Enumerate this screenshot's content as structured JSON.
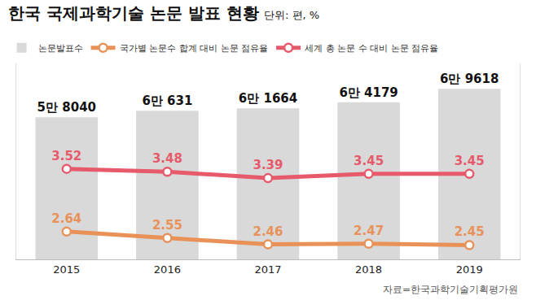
{
  "chart_data": {
    "type": "bar",
    "title": "한국 국제과학기술 논문 발표 현황",
    "subtitle": "단위: 편, %",
    "source": "자료=한국과학기술기획평가원",
    "categories": [
      "2015",
      "2016",
      "2017",
      "2018",
      "2019"
    ],
    "series": [
      {
        "name": "논문발표수",
        "type": "bar",
        "color": "#d9d9d9",
        "values": [
          58040,
          60631,
          61664,
          64179,
          69618
        ],
        "value_labels": [
          "5만 8040",
          "6만 631",
          "6만 1664",
          "6만 4179",
          "6만 9618"
        ]
      },
      {
        "name": "국가별 논문수 합계 대비 논문 점유율",
        "type": "line",
        "axis": "y2",
        "color": "#e8925a",
        "marker": "circle",
        "values": [
          2.64,
          2.55,
          2.46,
          2.47,
          2.45
        ]
      },
      {
        "name": "세계 총 논문 수 대비 논문 점유율",
        "type": "line",
        "axis": "y2",
        "color": "#e65a6b",
        "marker": "circle",
        "values": [
          3.52,
          3.48,
          3.39,
          3.45,
          3.45
        ]
      }
    ],
    "ylim": [
      0,
      80000
    ],
    "yticks": [],
    "y2lim": [
      2.25,
      5
    ],
    "y2ticks": [],
    "grid": false,
    "legend": "top-left",
    "data_labels": true,
    "tick_labels": "x"
  }
}
